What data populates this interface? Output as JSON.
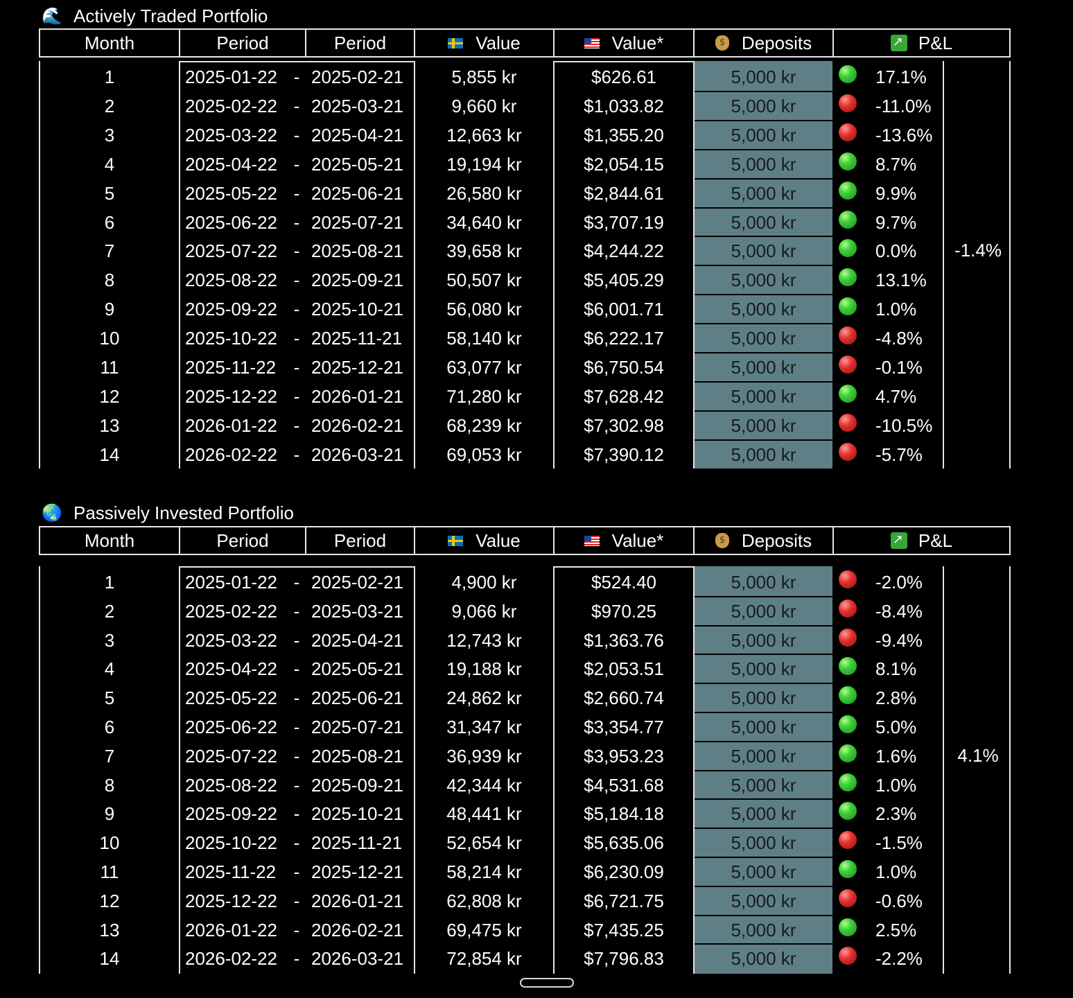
{
  "headers": {
    "month": "Month",
    "period_start": "Period",
    "period_end": "Period",
    "value_sek": "Value",
    "value_usd": "Value*",
    "deposits": "Deposits",
    "pnl": "P&L"
  },
  "icons": {
    "value_sek": "sweden-flag-icon",
    "value_usd": "us-flag-icon",
    "deposits": "money-bag-icon",
    "pnl": "chart-increasing-icon"
  },
  "colors": {
    "profit": "#3fd13a",
    "loss": "#e3302e",
    "deposit_bg": "#5f7f86"
  },
  "period_separator": "-",
  "portfolios": [
    {
      "title": "Actively Traded Portfolio",
      "icon": "wave-icon",
      "emoji": "🌊",
      "total": "-1.4%",
      "rows": [
        {
          "month": "1",
          "start": "2025-01-22",
          "end": "2025-02-21",
          "sek": "5,855 kr",
          "usd": "$626.61",
          "deposit": "5,000 kr",
          "pnl": "17.1%",
          "status": "green"
        },
        {
          "month": "2",
          "start": "2025-02-22",
          "end": "2025-03-21",
          "sek": "9,660 kr",
          "usd": "$1,033.82",
          "deposit": "5,000 kr",
          "pnl": "-11.0%",
          "status": "red"
        },
        {
          "month": "3",
          "start": "2025-03-22",
          "end": "2025-04-21",
          "sek": "12,663 kr",
          "usd": "$1,355.20",
          "deposit": "5,000 kr",
          "pnl": "-13.6%",
          "status": "red"
        },
        {
          "month": "4",
          "start": "2025-04-22",
          "end": "2025-05-21",
          "sek": "19,194 kr",
          "usd": "$2,054.15",
          "deposit": "5,000 kr",
          "pnl": "8.7%",
          "status": "green"
        },
        {
          "month": "5",
          "start": "2025-05-22",
          "end": "2025-06-21",
          "sek": "26,580 kr",
          "usd": "$2,844.61",
          "deposit": "5,000 kr",
          "pnl": "9.9%",
          "status": "green"
        },
        {
          "month": "6",
          "start": "2025-06-22",
          "end": "2025-07-21",
          "sek": "34,640 kr",
          "usd": "$3,707.19",
          "deposit": "5,000 kr",
          "pnl": "9.7%",
          "status": "green"
        },
        {
          "month": "7",
          "start": "2025-07-22",
          "end": "2025-08-21",
          "sek": "39,658 kr",
          "usd": "$4,244.22",
          "deposit": "5,000 kr",
          "pnl": "0.0%",
          "status": "green"
        },
        {
          "month": "8",
          "start": "2025-08-22",
          "end": "2025-09-21",
          "sek": "50,507 kr",
          "usd": "$5,405.29",
          "deposit": "5,000 kr",
          "pnl": "13.1%",
          "status": "green"
        },
        {
          "month": "9",
          "start": "2025-09-22",
          "end": "2025-10-21",
          "sek": "56,080 kr",
          "usd": "$6,001.71",
          "deposit": "5,000 kr",
          "pnl": "1.0%",
          "status": "green"
        },
        {
          "month": "10",
          "start": "2025-10-22",
          "end": "2025-11-21",
          "sek": "58,140 kr",
          "usd": "$6,222.17",
          "deposit": "5,000 kr",
          "pnl": "-4.8%",
          "status": "red"
        },
        {
          "month": "11",
          "start": "2025-11-22",
          "end": "2025-12-21",
          "sek": "63,077 kr",
          "usd": "$6,750.54",
          "deposit": "5,000 kr",
          "pnl": "-0.1%",
          "status": "red"
        },
        {
          "month": "12",
          "start": "2025-12-22",
          "end": "2026-01-21",
          "sek": "71,280 kr",
          "usd": "$7,628.42",
          "deposit": "5,000 kr",
          "pnl": "4.7%",
          "status": "green"
        },
        {
          "month": "13",
          "start": "2026-01-22",
          "end": "2026-02-21",
          "sek": "68,239 kr",
          "usd": "$7,302.98",
          "deposit": "5,000 kr",
          "pnl": "-10.5%",
          "status": "red"
        },
        {
          "month": "14",
          "start": "2026-02-22",
          "end": "2026-03-21",
          "sek": "69,053 kr",
          "usd": "$7,390.12",
          "deposit": "5,000 kr",
          "pnl": "-5.7%",
          "status": "red"
        }
      ]
    },
    {
      "title": "Passively Invested Portfolio",
      "icon": "globe-icon",
      "emoji": "🌏",
      "total": "4.1%",
      "rows": [
        {
          "month": "1",
          "start": "2025-01-22",
          "end": "2025-02-21",
          "sek": "4,900 kr",
          "usd": "$524.40",
          "deposit": "5,000 kr",
          "pnl": "-2.0%",
          "status": "red"
        },
        {
          "month": "2",
          "start": "2025-02-22",
          "end": "2025-03-21",
          "sek": "9,066 kr",
          "usd": "$970.25",
          "deposit": "5,000 kr",
          "pnl": "-8.4%",
          "status": "red"
        },
        {
          "month": "3",
          "start": "2025-03-22",
          "end": "2025-04-21",
          "sek": "12,743 kr",
          "usd": "$1,363.76",
          "deposit": "5,000 kr",
          "pnl": "-9.4%",
          "status": "red"
        },
        {
          "month": "4",
          "start": "2025-04-22",
          "end": "2025-05-21",
          "sek": "19,188 kr",
          "usd": "$2,053.51",
          "deposit": "5,000 kr",
          "pnl": "8.1%",
          "status": "green"
        },
        {
          "month": "5",
          "start": "2025-05-22",
          "end": "2025-06-21",
          "sek": "24,862 kr",
          "usd": "$2,660.74",
          "deposit": "5,000 kr",
          "pnl": "2.8%",
          "status": "green"
        },
        {
          "month": "6",
          "start": "2025-06-22",
          "end": "2025-07-21",
          "sek": "31,347 kr",
          "usd": "$3,354.77",
          "deposit": "5,000 kr",
          "pnl": "5.0%",
          "status": "green"
        },
        {
          "month": "7",
          "start": "2025-07-22",
          "end": "2025-08-21",
          "sek": "36,939 kr",
          "usd": "$3,953.23",
          "deposit": "5,000 kr",
          "pnl": "1.6%",
          "status": "green"
        },
        {
          "month": "8",
          "start": "2025-08-22",
          "end": "2025-09-21",
          "sek": "42,344 kr",
          "usd": "$4,531.68",
          "deposit": "5,000 kr",
          "pnl": "1.0%",
          "status": "green"
        },
        {
          "month": "9",
          "start": "2025-09-22",
          "end": "2025-10-21",
          "sek": "48,441 kr",
          "usd": "$5,184.18",
          "deposit": "5,000 kr",
          "pnl": "2.3%",
          "status": "green"
        },
        {
          "month": "10",
          "start": "2025-10-22",
          "end": "2025-11-21",
          "sek": "52,654 kr",
          "usd": "$5,635.06",
          "deposit": "5,000 kr",
          "pnl": "-1.5%",
          "status": "red"
        },
        {
          "month": "11",
          "start": "2025-11-22",
          "end": "2025-12-21",
          "sek": "58,214 kr",
          "usd": "$6,230.09",
          "deposit": "5,000 kr",
          "pnl": "1.0%",
          "status": "green"
        },
        {
          "month": "12",
          "start": "2025-12-22",
          "end": "2026-01-21",
          "sek": "62,808 kr",
          "usd": "$6,721.75",
          "deposit": "5,000 kr",
          "pnl": "-0.6%",
          "status": "red"
        },
        {
          "month": "13",
          "start": "2026-01-22",
          "end": "2026-02-21",
          "sek": "69,475 kr",
          "usd": "$7,435.25",
          "deposit": "5,000 kr",
          "pnl": "2.5%",
          "status": "green"
        },
        {
          "month": "14",
          "start": "2026-02-22",
          "end": "2026-03-21",
          "sek": "72,854 kr",
          "usd": "$7,796.83",
          "deposit": "5,000 kr",
          "pnl": "-2.2%",
          "status": "red"
        }
      ]
    }
  ]
}
